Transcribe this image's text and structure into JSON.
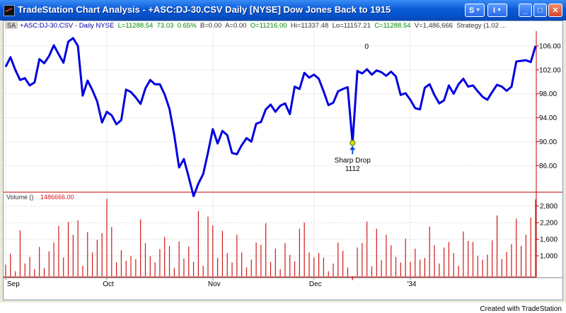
{
  "window": {
    "title": "TradeStation Chart Analysis - +ASC:DJ-30.CSV  Daily  [NYSE] Dow Jones Back to 1915",
    "controls": {
      "s_button": "S",
      "i_button": "I",
      "minimize": "_",
      "maximize": "□",
      "close": "✕"
    }
  },
  "info_bar": {
    "sa": "SA",
    "symbol": "+ASC:DJ-30.CSV - Daily  NYSE",
    "last": "L=11288.54",
    "change": "73.03",
    "pct": "0.65%",
    "bid": "B=0.00",
    "ask": "A=0.00",
    "open": "O=11216.00",
    "high": "Hi=11337.48",
    "low": "Lo=11157.21",
    "close": "C=11288.54",
    "volume": "V=1,486,666",
    "strategy": "Strategy (1.02 ..."
  },
  "volume_panel": {
    "label": "Volume ()",
    "value": "1486666.00"
  },
  "colors": {
    "price_line": "#0000e0",
    "volume_bar": "#d01818",
    "value_text": "#d01818",
    "up_text": "#008800",
    "arrow": "#1a48d8",
    "grid": "#c8c8c8",
    "axis": "#c00000"
  },
  "chart_data": [
    {
      "type": "line",
      "series": [
        {
          "values": [
            102.5,
            104.1,
            102.0,
            100.3,
            100.6,
            99.4,
            99.9,
            103.8,
            103.1,
            104.3,
            106.1,
            104.6,
            103.2,
            106.7,
            107.3,
            106.0,
            97.7,
            100.2,
            98.6,
            96.7,
            93.2,
            95.0,
            94.4,
            92.9,
            93.6,
            98.7,
            98.3,
            97.4,
            96.3,
            98.9,
            100.3,
            99.6,
            99.6,
            97.9,
            95.5,
            91.1,
            85.7,
            87.1,
            84.1,
            80.9,
            83.0,
            84.6,
            88.2,
            92.1,
            89.7,
            91.8,
            91.1,
            88.1,
            87.9,
            89.4,
            90.6,
            90.0,
            93.0,
            93.3,
            95.4,
            96.2,
            95.0,
            96.0,
            96.4,
            94.6,
            99.2,
            98.8,
            101.5,
            100.7,
            101.2,
            100.5,
            98.4,
            96.1,
            96.5,
            98.4,
            98.8,
            99.1,
            89.8,
            101.8,
            101.4,
            102.1,
            101.2,
            101.9,
            101.6,
            101.0,
            101.7,
            100.9,
            97.8,
            98.1,
            97.0,
            95.6,
            95.4,
            99.0,
            99.6,
            97.8,
            96.4,
            96.9,
            99.4,
            98.0,
            99.6,
            100.5,
            99.2,
            99.4,
            98.4,
            97.5,
            97.0,
            98.3,
            99.5,
            99.2,
            98.5,
            99.2,
            103.4,
            103.5,
            103.6,
            103.3,
            106.0
          ]
        }
      ],
      "y_ticks": [
        "86.00",
        "90.00",
        "94.00",
        "98.00",
        "102.00",
        "106.00"
      ],
      "ylim": [
        81.8,
        108.0
      ],
      "annotations": [
        {
          "label": "Sharp Drop",
          "sublabel": "1112",
          "index": 72
        },
        {
          "label": "0",
          "index": 72
        }
      ]
    },
    {
      "type": "bar",
      "name": "Volume",
      "values": [
        680,
        1080,
        440,
        1920,
        720,
        960,
        520,
        1320,
        560,
        1160,
        1480,
        2080,
        940,
        2220,
        1760,
        2280,
        640,
        1860,
        1120,
        1580,
        1820,
        3060,
        2040,
        760,
        1200,
        820,
        1000,
        880,
        2320,
        1460,
        980,
        760,
        1240,
        1680,
        1360,
        560,
        1520,
        900,
        1340,
        780,
        2620,
        640,
        2420,
        2100,
        920,
        1900,
        1100,
        760,
        1760,
        1120,
        580,
        860,
        1480,
        1400,
        2180,
        780,
        1260,
        520,
        1460,
        1040,
        800,
        1980,
        2200,
        1120,
        940,
        1100,
        940,
        440,
        720,
        1480,
        1180,
        580,
        120,
        1300,
        1460,
        2240,
        620,
        1980,
        840,
        1760,
        1380,
        960,
        760,
        1620,
        780,
        1260,
        860,
        920,
        2060,
        1380,
        720,
        1300,
        1500,
        1100,
        640,
        1880,
        1540,
        1500,
        1000,
        860,
        1040,
        1560,
        2460,
        880,
        1140,
        1420,
        2340,
        1360,
        1760,
        2380,
        3040
      ],
      "y_ticks": [
        "1,000",
        "1,600",
        "2,200",
        "2,800"
      ],
      "ylim": [
        260,
        3200
      ]
    }
  ],
  "x_labels": [
    {
      "text": "Sep",
      "index": 0
    },
    {
      "text": "Oct",
      "index": 21
    },
    {
      "text": "Nov",
      "index": 43
    },
    {
      "text": "Dec",
      "index": 64
    },
    {
      "text": "'34",
      "index": 84
    }
  ],
  "footer": "Created with TradeStation"
}
